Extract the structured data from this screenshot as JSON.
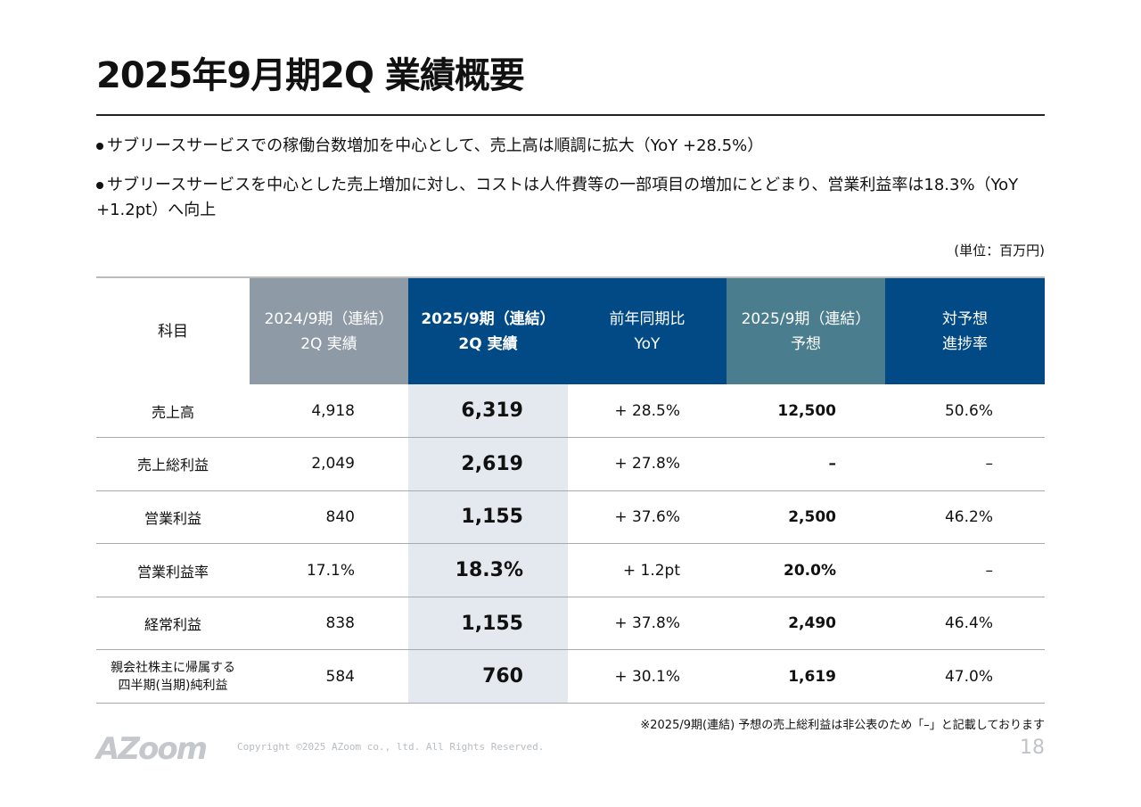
{
  "title": "2025年9月期2Q 業績概要",
  "bullets": [
    "サブリースサービスでの稼働台数増加を中心として、売上高は順調に拡大（YoY +28.5%）",
    "サブリースサービスを中心とした売上増加に対し、コストは人件費等の一部項目の増加にとどまり、営業利益率は18.3%（YoY +1.2pt）へ向上"
  ],
  "unit": "(単位：百万円)",
  "table": {
    "headers": [
      [
        "科目",
        ""
      ],
      [
        "2024/9期（連結）",
        "2Q 実績"
      ],
      [
        "2025/9期（連結）",
        "2Q 実績"
      ],
      [
        "前年同期比",
        "YoY"
      ],
      [
        "2025/9期（連結）",
        "予想"
      ],
      [
        "対予想",
        "進捗率"
      ]
    ],
    "rows": [
      [
        "売上高",
        "4,918",
        "6,319",
        "+ 28.5%",
        "12,500",
        "50.6%"
      ],
      [
        "売上総利益",
        "2,049",
        "2,619",
        "+ 27.8%",
        "–",
        "–"
      ],
      [
        "営業利益",
        "840",
        "1,155",
        "+ 37.6%",
        "2,500",
        "46.2%"
      ],
      [
        "営業利益率",
        "17.1%",
        "18.3%",
        "+ 1.2pt",
        "20.0%",
        "–"
      ],
      [
        "経常利益",
        "838",
        "1,155",
        "+ 37.8%",
        "2,490",
        "46.4%"
      ],
      [
        "親会社株主に帰属する\n四半期(当期)純利益",
        "584",
        "760",
        "+ 30.1%",
        "1,619",
        "47.0%"
      ]
    ]
  },
  "note": "※2025/9期(連結) 予想の売上総利益は非公表のため「–」と記載しております",
  "footer": {
    "logo": "AZoom",
    "copyright": "Copyright ©2025 AZoom co., ltd. All Rights Reserved.",
    "page": "18"
  },
  "colors": {
    "header_gray": "#8e9aa6",
    "header_navy": "#024a86",
    "header_teal": "#4a7d8e",
    "highlight": "#e4e9ef"
  }
}
